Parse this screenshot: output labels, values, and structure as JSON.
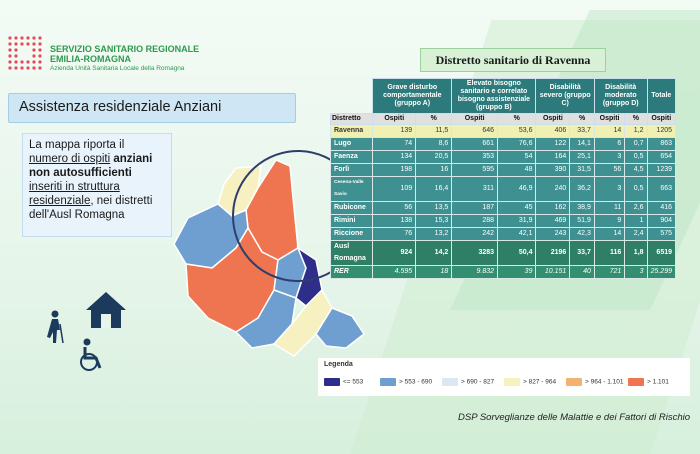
{
  "org": {
    "line1": "SERVIZIO SANITARIO REGIONALE",
    "line2": "EMILIA-ROMAGNA",
    "line3": "Azienda Unità Sanitaria Locale della Romagna"
  },
  "title": "Assistenza residenziale Anziani",
  "description": {
    "p1": "La mappa riporta il ",
    "p2": "numero di ospiti",
    "p3": " anziani",
    "p4": "non autosufficienti",
    "p5": "inseriti in struttura residenziale",
    "p6": ", nei distretti dell'Ausl Romagna"
  },
  "distretto_label": "Distretto sanitario di Ravenna",
  "table": {
    "head": {
      "g_a": "Grave disturbo comportamentale (gruppo A)",
      "g_b": "Elevato bisogno sanitario e correlato bisogno assistenziale (gruppo B)",
      "g_c": "Disabilità severo (gruppo C)",
      "g_d": "Disabilità moderato (gruppo D)",
      "tot": "Totale",
      "distretto": "Distretto",
      "ospiti": "Ospiti",
      "pct": "%"
    },
    "rows": [
      {
        "name": "Ravenna",
        "v": [
          "139",
          "11,5",
          "646",
          "53,6",
          "406",
          "33,7",
          "14",
          "1,2",
          "1205"
        ],
        "hl": true
      },
      {
        "name": "Lugo",
        "v": [
          "74",
          "8,6",
          "661",
          "76,6",
          "122",
          "14,1",
          "6",
          "0,7",
          "863"
        ]
      },
      {
        "name": "Faenza",
        "v": [
          "134",
          "20,5",
          "353",
          "54",
          "164",
          "25,1",
          "3",
          "0,5",
          "654"
        ]
      },
      {
        "name": "Forlì",
        "v": [
          "198",
          "16",
          "595",
          "48",
          "390",
          "31,5",
          "56",
          "4,5",
          "1239"
        ]
      },
      {
        "name": "Cesena-Valle Savio",
        "v": [
          "109",
          "16,4",
          "311",
          "46,9",
          "240",
          "36,2",
          "3",
          "0,5",
          "663"
        ]
      },
      {
        "name": "Rubicone",
        "v": [
          "56",
          "13,5",
          "187",
          "45",
          "162",
          "38,9",
          "11",
          "2,6",
          "416"
        ]
      },
      {
        "name": "Rimini",
        "v": [
          "138",
          "15,3",
          "288",
          "31,9",
          "469",
          "51,9",
          "9",
          "1",
          "904"
        ]
      },
      {
        "name": "Riccione",
        "v": [
          "76",
          "13,2",
          "242",
          "42,1",
          "243",
          "42,3",
          "14",
          "2,4",
          "575"
        ]
      },
      {
        "name": "Ausl Romagna",
        "v": [
          "924",
          "14,2",
          "3283",
          "50,4",
          "2196",
          "33,7",
          "116",
          "1,8",
          "6519"
        ],
        "tot": true
      },
      {
        "name": "RER",
        "v": [
          "4.595",
          "18",
          "9.832",
          "39",
          "10.151",
          "40",
          "721",
          "3",
          "25.299"
        ],
        "rer": true
      }
    ]
  },
  "legend": {
    "title": "Legenda",
    "items": [
      {
        "label": "<= 553",
        "color": "#2e2e8a"
      },
      {
        "label": "> 553 - 690",
        "color": "#6f9fd0"
      },
      {
        "label": "> 690 - 827",
        "color": "#dbe8f3"
      },
      {
        "label": "> 827 - 964",
        "color": "#f7f1c2"
      },
      {
        "label": "> 964 - 1.101",
        "color": "#f2b270"
      },
      {
        "label": "> 1.101",
        "color": "#ef7450"
      }
    ]
  },
  "footer": "DSP Sorveglianze delle Malattie e dei Fattori di Rischio"
}
